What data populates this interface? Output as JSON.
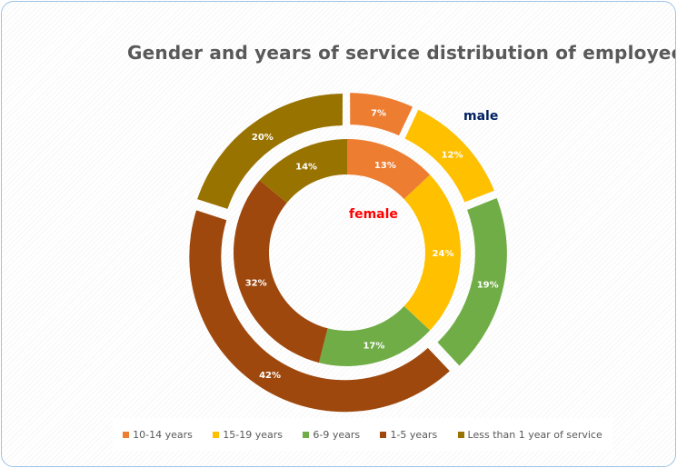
{
  "chart_data": {
    "type": "doughnut",
    "title": "Gender and years of service distribution of employees",
    "categories": [
      "10-14 years",
      "15-19 years",
      "6-9 years",
      "1-5 years",
      "Less than 1 year of service"
    ],
    "colors": [
      "#ed7d31",
      "#ffc000",
      "#70ad47",
      "#9e480e",
      "#997300"
    ],
    "series": [
      {
        "name": "male",
        "ring": "outer",
        "values": [
          7,
          12,
          19,
          42,
          20
        ],
        "label_color": "#002060"
      },
      {
        "name": "female",
        "ring": "inner",
        "values": [
          13,
          24,
          17,
          32,
          14
        ],
        "label_color": "#ff0000"
      }
    ],
    "value_format": "percent",
    "legend": "bottom"
  }
}
